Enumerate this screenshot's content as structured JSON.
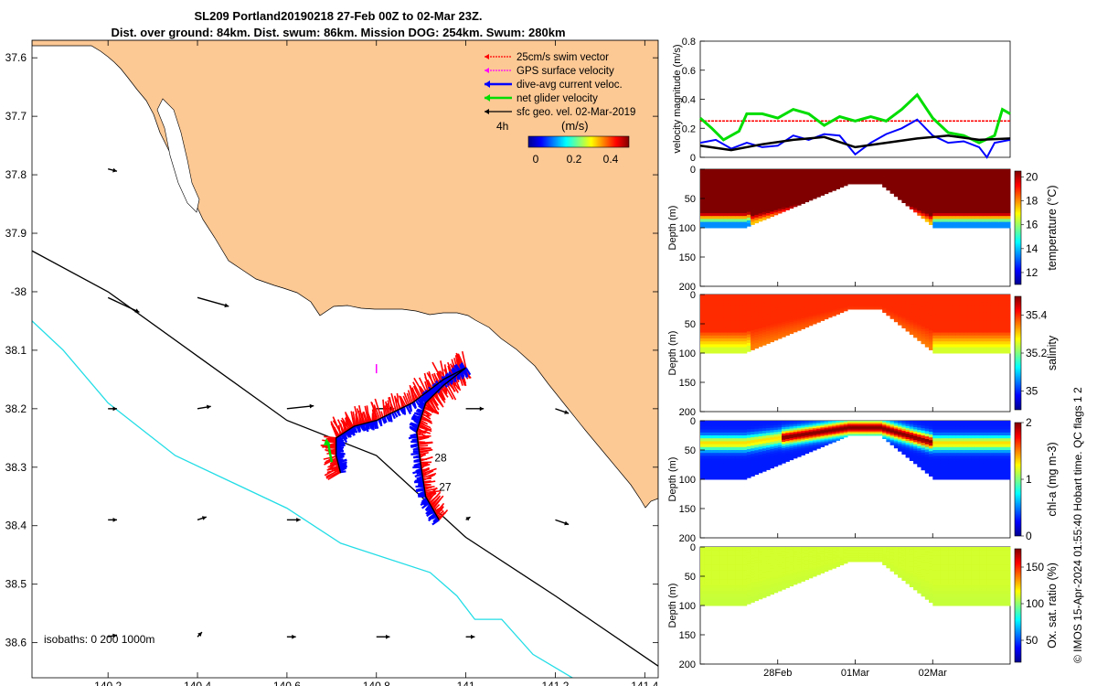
{
  "title": {
    "line1": "SL209 Portland20190218 27-Feb 00Z to 02-Mar 23Z.",
    "line2": "Dist. over ground: 84km. Dist. swum: 86km. Mission DOG: 254km. Swum: 280km"
  },
  "credit": "© IMOS 15-Apr-2024 01:55:40 Hobart time. QC flags 1  2",
  "colors": {
    "land": "#fcc894",
    "isobath_200": "#000000",
    "isobath_1000": "#22dde6",
    "swim": "#ff0000",
    "gps": "#ff00ff",
    "current": "#0000ff",
    "net": "#00dd00",
    "geo": "#000000"
  },
  "chart_data": [
    {
      "type": "scatter",
      "name": "map",
      "xlim": [
        140.03,
        141.43
      ],
      "ylim": [
        38.66,
        37.57
      ],
      "xticks": [
        140.2,
        140.4,
        140.6,
        140.8,
        141,
        141.2,
        141.4
      ],
      "xtick_labels": [
        "140.2",
        "140.4",
        "140.6",
        "140.8",
        "141",
        "141.2",
        "141.4"
      ],
      "yticks": [
        37.6,
        37.7,
        37.8,
        37.9,
        38.0,
        38.1,
        38.2,
        38.3,
        38.4,
        38.5,
        38.6
      ],
      "ytick_labels": [
        "37.6",
        "37.7",
        "37.8",
        "37.9",
        "-38",
        "38.1",
        "38.2",
        "38.3",
        "38.4",
        "38.5",
        "38.6"
      ],
      "legend": {
        "position": "top-right",
        "entries": [
          "25cm/s swim vector",
          "GPS surface velocity",
          "dive-avg current veloc.",
          "net glider velocity",
          "sfc geo. vel. 02-Mar-2019"
        ]
      },
      "colorbar": {
        "label": "(m/s)",
        "ticks": [
          "0",
          "0.2",
          "0.4"
        ],
        "range": [
          0,
          0.5
        ]
      },
      "interval_label": "4h",
      "isobath_label": "isobaths: 0   200  1000m",
      "day_labels": [
        {
          "text": "28",
          "lon": 140.93,
          "lat": 38.29
        },
        {
          "text": "27",
          "lon": 140.94,
          "lat": 38.34
        }
      ],
      "track": [
        [
          140.94,
          38.39
        ],
        [
          140.91,
          38.35
        ],
        [
          140.9,
          38.3
        ],
        [
          140.89,
          38.24
        ],
        [
          140.91,
          38.19
        ],
        [
          140.95,
          38.16
        ],
        [
          141.0,
          38.13
        ],
        [
          140.95,
          38.15
        ],
        [
          140.88,
          38.19
        ],
        [
          140.8,
          38.22
        ],
        [
          140.75,
          38.23
        ],
        [
          140.71,
          38.25
        ],
        [
          140.71,
          38.28
        ],
        [
          140.72,
          38.31
        ]
      ],
      "isobath_200": [
        [
          140.03,
          37.93
        ],
        [
          140.2,
          38.0
        ],
        [
          140.4,
          38.11
        ],
        [
          140.6,
          38.22
        ],
        [
          140.8,
          38.28
        ],
        [
          141.0,
          38.42
        ],
        [
          141.2,
          38.52
        ],
        [
          141.43,
          38.64
        ]
      ],
      "isobath_1000": [
        [
          140.03,
          38.05
        ],
        [
          140.1,
          38.1
        ],
        [
          140.2,
          38.19
        ],
        [
          140.35,
          38.28
        ],
        [
          140.6,
          38.37
        ],
        [
          140.72,
          38.43
        ],
        [
          140.92,
          38.48
        ],
        [
          140.98,
          38.52
        ],
        [
          141.02,
          38.56
        ],
        [
          141.08,
          38.56
        ],
        [
          141.15,
          38.62
        ],
        [
          141.26,
          38.67
        ]
      ],
      "geo_vectors": [
        [
          140.2,
          37.79,
          0.02,
          0.004
        ],
        [
          140.2,
          38.01,
          0.07,
          0.025
        ],
        [
          140.4,
          38.01,
          0.07,
          0.015
        ],
        [
          140.2,
          38.2,
          0.02,
          0.0
        ],
        [
          140.4,
          38.2,
          0.03,
          -0.004
        ],
        [
          140.6,
          38.2,
          0.06,
          -0.005
        ],
        [
          140.8,
          38.2,
          0.04,
          0.0
        ],
        [
          141.0,
          38.2,
          0.04,
          0.0
        ],
        [
          141.2,
          38.2,
          0.03,
          0.008
        ],
        [
          140.2,
          38.39,
          0.02,
          0.0
        ],
        [
          140.4,
          38.39,
          0.02,
          -0.005
        ],
        [
          140.6,
          38.39,
          0.03,
          0.0
        ],
        [
          141.0,
          38.39,
          0.01,
          -0.005
        ],
        [
          141.2,
          38.39,
          0.03,
          0.008
        ],
        [
          140.2,
          38.59,
          0.02,
          -0.003
        ],
        [
          140.4,
          38.59,
          0.01,
          -0.008
        ],
        [
          140.6,
          38.59,
          0.02,
          0.0
        ],
        [
          140.8,
          38.59,
          0.03,
          0.0
        ],
        [
          141.0,
          38.59,
          0.02,
          0.0
        ]
      ]
    },
    {
      "type": "line",
      "name": "velocity",
      "ylabel": "velocity magnitude (m/s)",
      "ylim": [
        0,
        0.8
      ],
      "yticks": [
        0,
        0.2,
        0.4,
        0.6,
        0.8
      ],
      "ytick_labels": [
        "0",
        "0.2",
        "0.4",
        "0.6",
        "0.8"
      ],
      "xlim": [
        0,
        4
      ],
      "series": [
        {
          "role": "swim",
          "values": [
            [
              0,
              0.25
            ],
            [
              4,
              0.25
            ]
          ]
        },
        {
          "role": "net",
          "values": [
            [
              0,
              0.27
            ],
            [
              0.15,
              0.2
            ],
            [
              0.3,
              0.12
            ],
            [
              0.5,
              0.18
            ],
            [
              0.6,
              0.3
            ],
            [
              0.8,
              0.3
            ],
            [
              1.0,
              0.27
            ],
            [
              1.2,
              0.33
            ],
            [
              1.4,
              0.3
            ],
            [
              1.6,
              0.22
            ],
            [
              1.8,
              0.28
            ],
            [
              2.0,
              0.25
            ],
            [
              2.2,
              0.28
            ],
            [
              2.4,
              0.25
            ],
            [
              2.6,
              0.33
            ],
            [
              2.8,
              0.43
            ],
            [
              3.0,
              0.27
            ],
            [
              3.2,
              0.17
            ],
            [
              3.4,
              0.15
            ],
            [
              3.6,
              0.1
            ],
            [
              3.8,
              0.15
            ],
            [
              3.9,
              0.33
            ],
            [
              4.0,
              0.3
            ]
          ]
        },
        {
          "role": "current",
          "values": [
            [
              0,
              0.1
            ],
            [
              0.2,
              0.12
            ],
            [
              0.4,
              0.06
            ],
            [
              0.6,
              0.1
            ],
            [
              0.8,
              0.07
            ],
            [
              1.0,
              0.08
            ],
            [
              1.2,
              0.15
            ],
            [
              1.4,
              0.12
            ],
            [
              1.6,
              0.16
            ],
            [
              1.8,
              0.15
            ],
            [
              2.0,
              0.02
            ],
            [
              2.2,
              0.1
            ],
            [
              2.4,
              0.16
            ],
            [
              2.6,
              0.2
            ],
            [
              2.8,
              0.26
            ],
            [
              3.0,
              0.15
            ],
            [
              3.2,
              0.1
            ],
            [
              3.4,
              0.11
            ],
            [
              3.6,
              0.07
            ],
            [
              3.7,
              0.0
            ],
            [
              3.8,
              0.1
            ],
            [
              4.0,
              0.12
            ]
          ]
        },
        {
          "role": "geo",
          "values": [
            [
              0,
              0.08
            ],
            [
              0.4,
              0.05
            ],
            [
              0.8,
              0.09
            ],
            [
              1.2,
              0.12
            ],
            [
              1.6,
              0.14
            ],
            [
              2.0,
              0.07
            ],
            [
              2.4,
              0.1
            ],
            [
              2.8,
              0.13
            ],
            [
              3.2,
              0.15
            ],
            [
              3.6,
              0.12
            ],
            [
              4.0,
              0.13
            ]
          ]
        }
      ]
    },
    {
      "type": "heatmap",
      "name": "temperature",
      "ylabel": "Depth (m)",
      "cblabel": "temperature (°C)",
      "cbticks": [
        12,
        14,
        16,
        18,
        20
      ],
      "cbrange": [
        11,
        20.5
      ],
      "yticks": [
        0,
        50,
        100,
        150,
        200
      ],
      "ylim": [
        0,
        200
      ],
      "xlim": [
        0,
        4
      ],
      "surface": 26,
      "deep": 13.5,
      "deep_mid": 17.5
    },
    {
      "type": "heatmap",
      "name": "salinity",
      "ylabel": "Depth (m)",
      "cblabel": "salinity",
      "cbticks": [
        35,
        35.2,
        35.4
      ],
      "cbrange": [
        34.9,
        35.5
      ],
      "yticks": [
        0,
        50,
        100,
        150,
        200
      ],
      "ylim": [
        0,
        200
      ],
      "xlim": [
        0,
        4
      ],
      "surface": 35.4,
      "deep": 35.25,
      "deep_mid": 35.35
    },
    {
      "type": "heatmap",
      "name": "chl-a",
      "ylabel": "Depth (m)",
      "cblabel": "chl-a (mg m-3)",
      "cbticks": [
        0,
        1,
        2
      ],
      "cbrange": [
        0,
        2
      ],
      "yticks": [
        0,
        50,
        100,
        150,
        200
      ],
      "ylim": [
        0,
        200
      ],
      "xlim": [
        0,
        4
      ],
      "surface": 0.3,
      "deep": 0.2,
      "deep_mid": 0.6
    },
    {
      "type": "heatmap",
      "name": "oxygen",
      "ylabel": "Depth (m)",
      "cblabel": "Ox. sat. ratio (%)",
      "cbticks": [
        50,
        100,
        150
      ],
      "cbrange": [
        20,
        175
      ],
      "yticks": [
        0,
        50,
        100,
        150,
        200
      ],
      "ylim": [
        0,
        200
      ],
      "xlim": [
        0,
        4
      ],
      "xticks": [
        1,
        2,
        3
      ],
      "xtick_labels": [
        "28Feb",
        "01Mar",
        "02Mar"
      ],
      "surface": 110,
      "deep": 108,
      "deep_mid": 108
    }
  ]
}
